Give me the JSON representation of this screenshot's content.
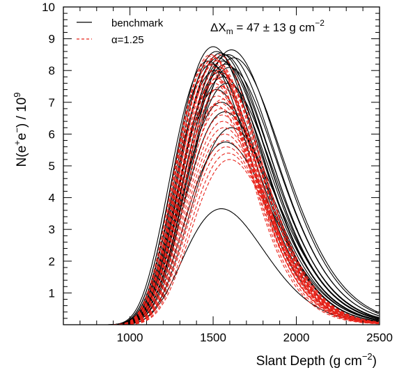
{
  "chart_data": {
    "type": "line",
    "title": "",
    "xlabel": "Slant Depth (g cm",
    "xlabel_sup": "−2",
    "xlabel_close": ")",
    "ylabel": "N(e",
    "ylabel_sup1": "+",
    "ylabel_mid": "e",
    "ylabel_sup2": "−",
    "ylabel_div": ") / 10",
    "ylabel_sup3": "9",
    "annotation": "ΔX",
    "annotation_sub": "m",
    "annotation_rest": " = 47 ± 13 g cm",
    "annotation_sup": "−2",
    "xlim": [
      600,
      2500
    ],
    "ylim": [
      0,
      10
    ],
    "x_ticks": [
      1000,
      1500,
      2000,
      2500
    ],
    "x_tick_labels": [
      "1000",
      "1500",
      "2000",
      "2500"
    ],
    "y_ticks": [
      1,
      2,
      3,
      4,
      5,
      6,
      7,
      8,
      9,
      10
    ],
    "y_tick_labels": [
      "1",
      "2",
      "3",
      "4",
      "5",
      "6",
      "7",
      "8",
      "9",
      "10"
    ],
    "grid": false,
    "legend_position": "top-left",
    "series": [
      {
        "name": "benchmark",
        "style": "solid",
        "color": "#000000",
        "curves": [
          {
            "xmax": 1500,
            "nmax": 8.75,
            "w": 248
          },
          {
            "xmax": 1520,
            "nmax": 8.6,
            "w": 255
          },
          {
            "xmax": 1545,
            "nmax": 8.55,
            "w": 260
          },
          {
            "xmax": 1565,
            "nmax": 8.5,
            "w": 262
          },
          {
            "xmax": 1590,
            "nmax": 8.5,
            "w": 268
          },
          {
            "xmax": 1610,
            "nmax": 8.65,
            "w": 272
          },
          {
            "xmax": 1625,
            "nmax": 8.4,
            "w": 275
          },
          {
            "xmax": 1470,
            "nmax": 8.3,
            "w": 240
          },
          {
            "xmax": 1490,
            "nmax": 8.2,
            "w": 245
          },
          {
            "xmax": 1530,
            "nmax": 8.4,
            "w": 255
          },
          {
            "xmax": 1555,
            "nmax": 8.3,
            "w": 258
          },
          {
            "xmax": 1575,
            "nmax": 8.2,
            "w": 262
          },
          {
            "xmax": 1600,
            "nmax": 8.1,
            "w": 268
          },
          {
            "xmax": 1510,
            "nmax": 8.0,
            "w": 250
          },
          {
            "xmax": 1540,
            "nmax": 7.95,
            "w": 255
          },
          {
            "xmax": 1560,
            "nmax": 7.8,
            "w": 260
          },
          {
            "xmax": 1585,
            "nmax": 7.6,
            "w": 265
          },
          {
            "xmax": 1520,
            "nmax": 7.4,
            "w": 250
          },
          {
            "xmax": 1550,
            "nmax": 7.0,
            "w": 255
          },
          {
            "xmax": 1570,
            "nmax": 6.7,
            "w": 258
          },
          {
            "xmax": 1610,
            "nmax": 6.2,
            "w": 262
          },
          {
            "xmax": 1575,
            "nmax": 5.75,
            "w": 258
          },
          {
            "xmax": 1550,
            "nmax": 3.65,
            "w": 245
          }
        ]
      },
      {
        "name": "α=1.25",
        "style": "dashed",
        "color": "#e8241b",
        "curves": [
          {
            "xmax": 1490,
            "nmax": 8.45,
            "w": 230
          },
          {
            "xmax": 1500,
            "nmax": 8.35,
            "w": 230
          },
          {
            "xmax": 1510,
            "nmax": 8.2,
            "w": 232
          },
          {
            "xmax": 1520,
            "nmax": 8.3,
            "w": 235
          },
          {
            "xmax": 1530,
            "nmax": 8.1,
            "w": 235
          },
          {
            "xmax": 1540,
            "nmax": 8.0,
            "w": 238
          },
          {
            "xmax": 1550,
            "nmax": 7.9,
            "w": 238
          },
          {
            "xmax": 1480,
            "nmax": 8.0,
            "w": 225
          },
          {
            "xmax": 1495,
            "nmax": 7.8,
            "w": 228
          },
          {
            "xmax": 1505,
            "nmax": 7.6,
            "w": 228
          },
          {
            "xmax": 1515,
            "nmax": 7.4,
            "w": 230
          },
          {
            "xmax": 1525,
            "nmax": 7.2,
            "w": 232
          },
          {
            "xmax": 1535,
            "nmax": 7.0,
            "w": 232
          },
          {
            "xmax": 1545,
            "nmax": 6.8,
            "w": 235
          },
          {
            "xmax": 1555,
            "nmax": 6.6,
            "w": 235
          },
          {
            "xmax": 1560,
            "nmax": 6.4,
            "w": 236
          },
          {
            "xmax": 1565,
            "nmax": 6.2,
            "w": 236
          },
          {
            "xmax": 1570,
            "nmax": 6.0,
            "w": 238
          },
          {
            "xmax": 1575,
            "nmax": 5.8,
            "w": 238
          },
          {
            "xmax": 1580,
            "nmax": 5.6,
            "w": 240
          },
          {
            "xmax": 1590,
            "nmax": 5.4,
            "w": 240
          },
          {
            "xmax": 1600,
            "nmax": 5.2,
            "w": 242
          },
          {
            "xmax": 1470,
            "nmax": 8.2,
            "w": 222
          },
          {
            "xmax": 1485,
            "nmax": 8.5,
            "w": 225
          },
          {
            "xmax": 1525,
            "nmax": 7.75,
            "w": 232
          },
          {
            "xmax": 1545,
            "nmax": 7.5,
            "w": 234
          },
          {
            "xmax": 1560,
            "nmax": 7.1,
            "w": 236
          },
          {
            "xmax": 1505,
            "nmax": 8.4,
            "w": 230
          },
          {
            "xmax": 1535,
            "nmax": 8.5,
            "w": 233
          },
          {
            "xmax": 1515,
            "nmax": 6.9,
            "w": 230
          }
        ]
      }
    ]
  }
}
